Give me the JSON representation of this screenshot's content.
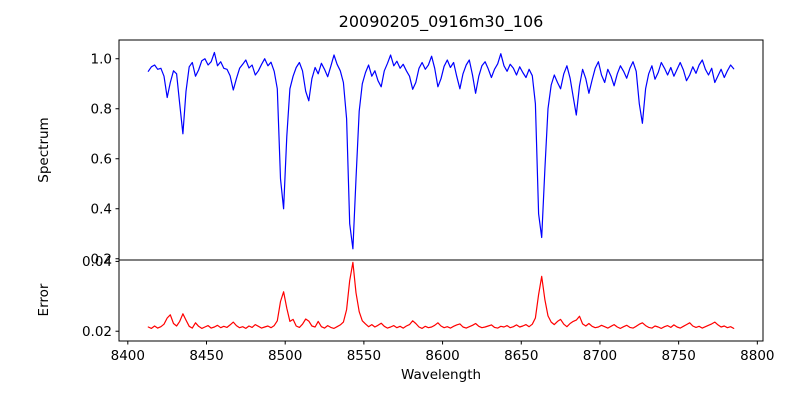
{
  "chart_data": {
    "type": "line",
    "title": "20090205_0916m30_106",
    "xlabel": "Wavelength",
    "grid": false,
    "legend": "none",
    "x_start": 8413,
    "x_step": 2,
    "xlim": [
      8394.4,
      8803.6
    ],
    "x_ticks": [
      8400,
      8450,
      8500,
      8550,
      8600,
      8650,
      8700,
      8750,
      8800
    ],
    "x_tick_labels": [
      "8400",
      "8450",
      "8500",
      "8550",
      "8600",
      "8650",
      "8700",
      "8750",
      "8800"
    ],
    "panels": [
      {
        "name": "spectrum",
        "ylabel": "Spectrum",
        "line_color": "#0000ff",
        "ylim": [
          0.195,
          1.075
        ],
        "y_ticks": [
          0.2,
          0.4,
          0.6,
          0.8,
          1.0
        ],
        "y_tick_labels": [
          "0.2",
          "0.4",
          "0.6",
          "0.8",
          "1.0"
        ],
        "values": [
          0.95,
          0.968,
          0.975,
          0.958,
          0.962,
          0.93,
          0.845,
          0.905,
          0.952,
          0.94,
          0.82,
          0.7,
          0.87,
          0.968,
          0.985,
          0.93,
          0.955,
          0.992,
          1.0,
          0.975,
          0.988,
          1.025,
          0.972,
          0.988,
          0.962,
          0.958,
          0.932,
          0.875,
          0.92,
          0.962,
          0.978,
          0.995,
          0.963,
          0.975,
          0.935,
          0.952,
          0.978,
          1.0,
          0.972,
          0.986,
          0.95,
          0.88,
          0.52,
          0.4,
          0.69,
          0.88,
          0.93,
          0.965,
          0.985,
          0.952,
          0.87,
          0.832,
          0.92,
          0.965,
          0.94,
          0.982,
          0.958,
          0.928,
          0.97,
          1.015,
          0.978,
          0.952,
          0.905,
          0.76,
          0.34,
          0.24,
          0.52,
          0.79,
          0.9,
          0.945,
          0.975,
          0.93,
          0.952,
          0.912,
          0.888,
          0.952,
          0.982,
          1.015,
          0.972,
          0.99,
          0.962,
          0.978,
          0.952,
          0.93,
          0.878,
          0.905,
          0.962,
          0.985,
          0.958,
          0.975,
          1.01,
          0.962,
          0.888,
          0.92,
          0.97,
          0.995,
          0.965,
          0.985,
          0.93,
          0.88,
          0.94,
          0.975,
          0.995,
          0.935,
          0.862,
          0.93,
          0.972,
          0.988,
          0.96,
          0.925,
          0.958,
          0.98,
          1.02,
          0.972,
          0.95,
          0.978,
          0.962,
          0.935,
          0.968,
          0.945,
          0.925,
          0.958,
          0.932,
          0.82,
          0.38,
          0.285,
          0.56,
          0.8,
          0.895,
          0.935,
          0.905,
          0.88,
          0.94,
          0.972,
          0.922,
          0.848,
          0.775,
          0.892,
          0.958,
          0.92,
          0.862,
          0.915,
          0.962,
          0.988,
          0.935,
          0.905,
          0.958,
          0.93,
          0.892,
          0.94,
          0.972,
          0.95,
          0.922,
          0.962,
          0.988,
          0.95,
          0.82,
          0.742,
          0.88,
          0.94,
          0.972,
          0.918,
          0.945,
          0.985,
          0.962,
          0.935,
          0.965,
          0.93,
          0.958,
          0.985,
          0.955,
          0.912,
          0.935,
          0.968,
          0.942,
          0.975,
          0.995,
          0.958,
          0.935,
          0.962,
          0.905,
          0.932,
          0.958,
          0.925,
          0.952,
          0.975,
          0.96
        ]
      },
      {
        "name": "error",
        "ylabel": "Error",
        "line_color": "#ff0000",
        "ylim": [
          0.0172,
          0.0404
        ],
        "y_ticks": [
          0.02,
          0.04
        ],
        "y_tick_labels": [
          "0.02",
          "0.04"
        ],
        "values": [
          0.0212,
          0.0208,
          0.0215,
          0.0209,
          0.0213,
          0.022,
          0.0238,
          0.0247,
          0.0222,
          0.0215,
          0.0228,
          0.025,
          0.0232,
          0.0214,
          0.0209,
          0.0224,
          0.0214,
          0.0208,
          0.0212,
          0.0216,
          0.0209,
          0.0212,
          0.0217,
          0.021,
          0.0214,
          0.0211,
          0.0218,
          0.0226,
          0.0216,
          0.021,
          0.0213,
          0.0208,
          0.0215,
          0.0211,
          0.0219,
          0.0214,
          0.0209,
          0.0212,
          0.0215,
          0.021,
          0.0216,
          0.023,
          0.0285,
          0.0313,
          0.0266,
          0.0228,
          0.0234,
          0.0215,
          0.0211,
          0.022,
          0.0235,
          0.0229,
          0.0215,
          0.0212,
          0.0228,
          0.0213,
          0.0209,
          0.0216,
          0.0211,
          0.0208,
          0.0213,
          0.0218,
          0.0226,
          0.0262,
          0.0345,
          0.0397,
          0.031,
          0.0256,
          0.023,
          0.0221,
          0.0213,
          0.0219,
          0.0212,
          0.0217,
          0.0223,
          0.0214,
          0.0209,
          0.0212,
          0.0216,
          0.021,
          0.0214,
          0.0209,
          0.0215,
          0.0219,
          0.023,
          0.0222,
          0.0212,
          0.0208,
          0.0214,
          0.021,
          0.0212,
          0.0217,
          0.0224,
          0.0215,
          0.021,
          0.0213,
          0.0209,
          0.0214,
          0.0218,
          0.0221,
          0.0212,
          0.0209,
          0.0213,
          0.0217,
          0.0222,
          0.0214,
          0.021,
          0.0212,
          0.0215,
          0.0218,
          0.0211,
          0.0209,
          0.0214,
          0.0212,
          0.0216,
          0.021,
          0.0213,
          0.0218,
          0.0212,
          0.0215,
          0.0219,
          0.0213,
          0.022,
          0.0238,
          0.0305,
          0.0357,
          0.029,
          0.0244,
          0.0226,
          0.0219,
          0.0228,
          0.0234,
          0.022,
          0.0213,
          0.0222,
          0.0228,
          0.0232,
          0.0243,
          0.0221,
          0.0215,
          0.0222,
          0.0214,
          0.021,
          0.0212,
          0.0217,
          0.0213,
          0.0209,
          0.0214,
          0.0219,
          0.0212,
          0.0208,
          0.0213,
          0.0217,
          0.0211,
          0.0209,
          0.0214,
          0.022,
          0.0224,
          0.0216,
          0.0211,
          0.0209,
          0.0215,
          0.0212,
          0.0208,
          0.0213,
          0.0216,
          0.0211,
          0.0218,
          0.0212,
          0.0209,
          0.0214,
          0.0219,
          0.0224,
          0.0215,
          0.0211,
          0.0214,
          0.0209,
          0.0213,
          0.0217,
          0.0221,
          0.0226,
          0.0218,
          0.0212,
          0.0215,
          0.021,
          0.0213,
          0.0208
        ]
      }
    ]
  }
}
